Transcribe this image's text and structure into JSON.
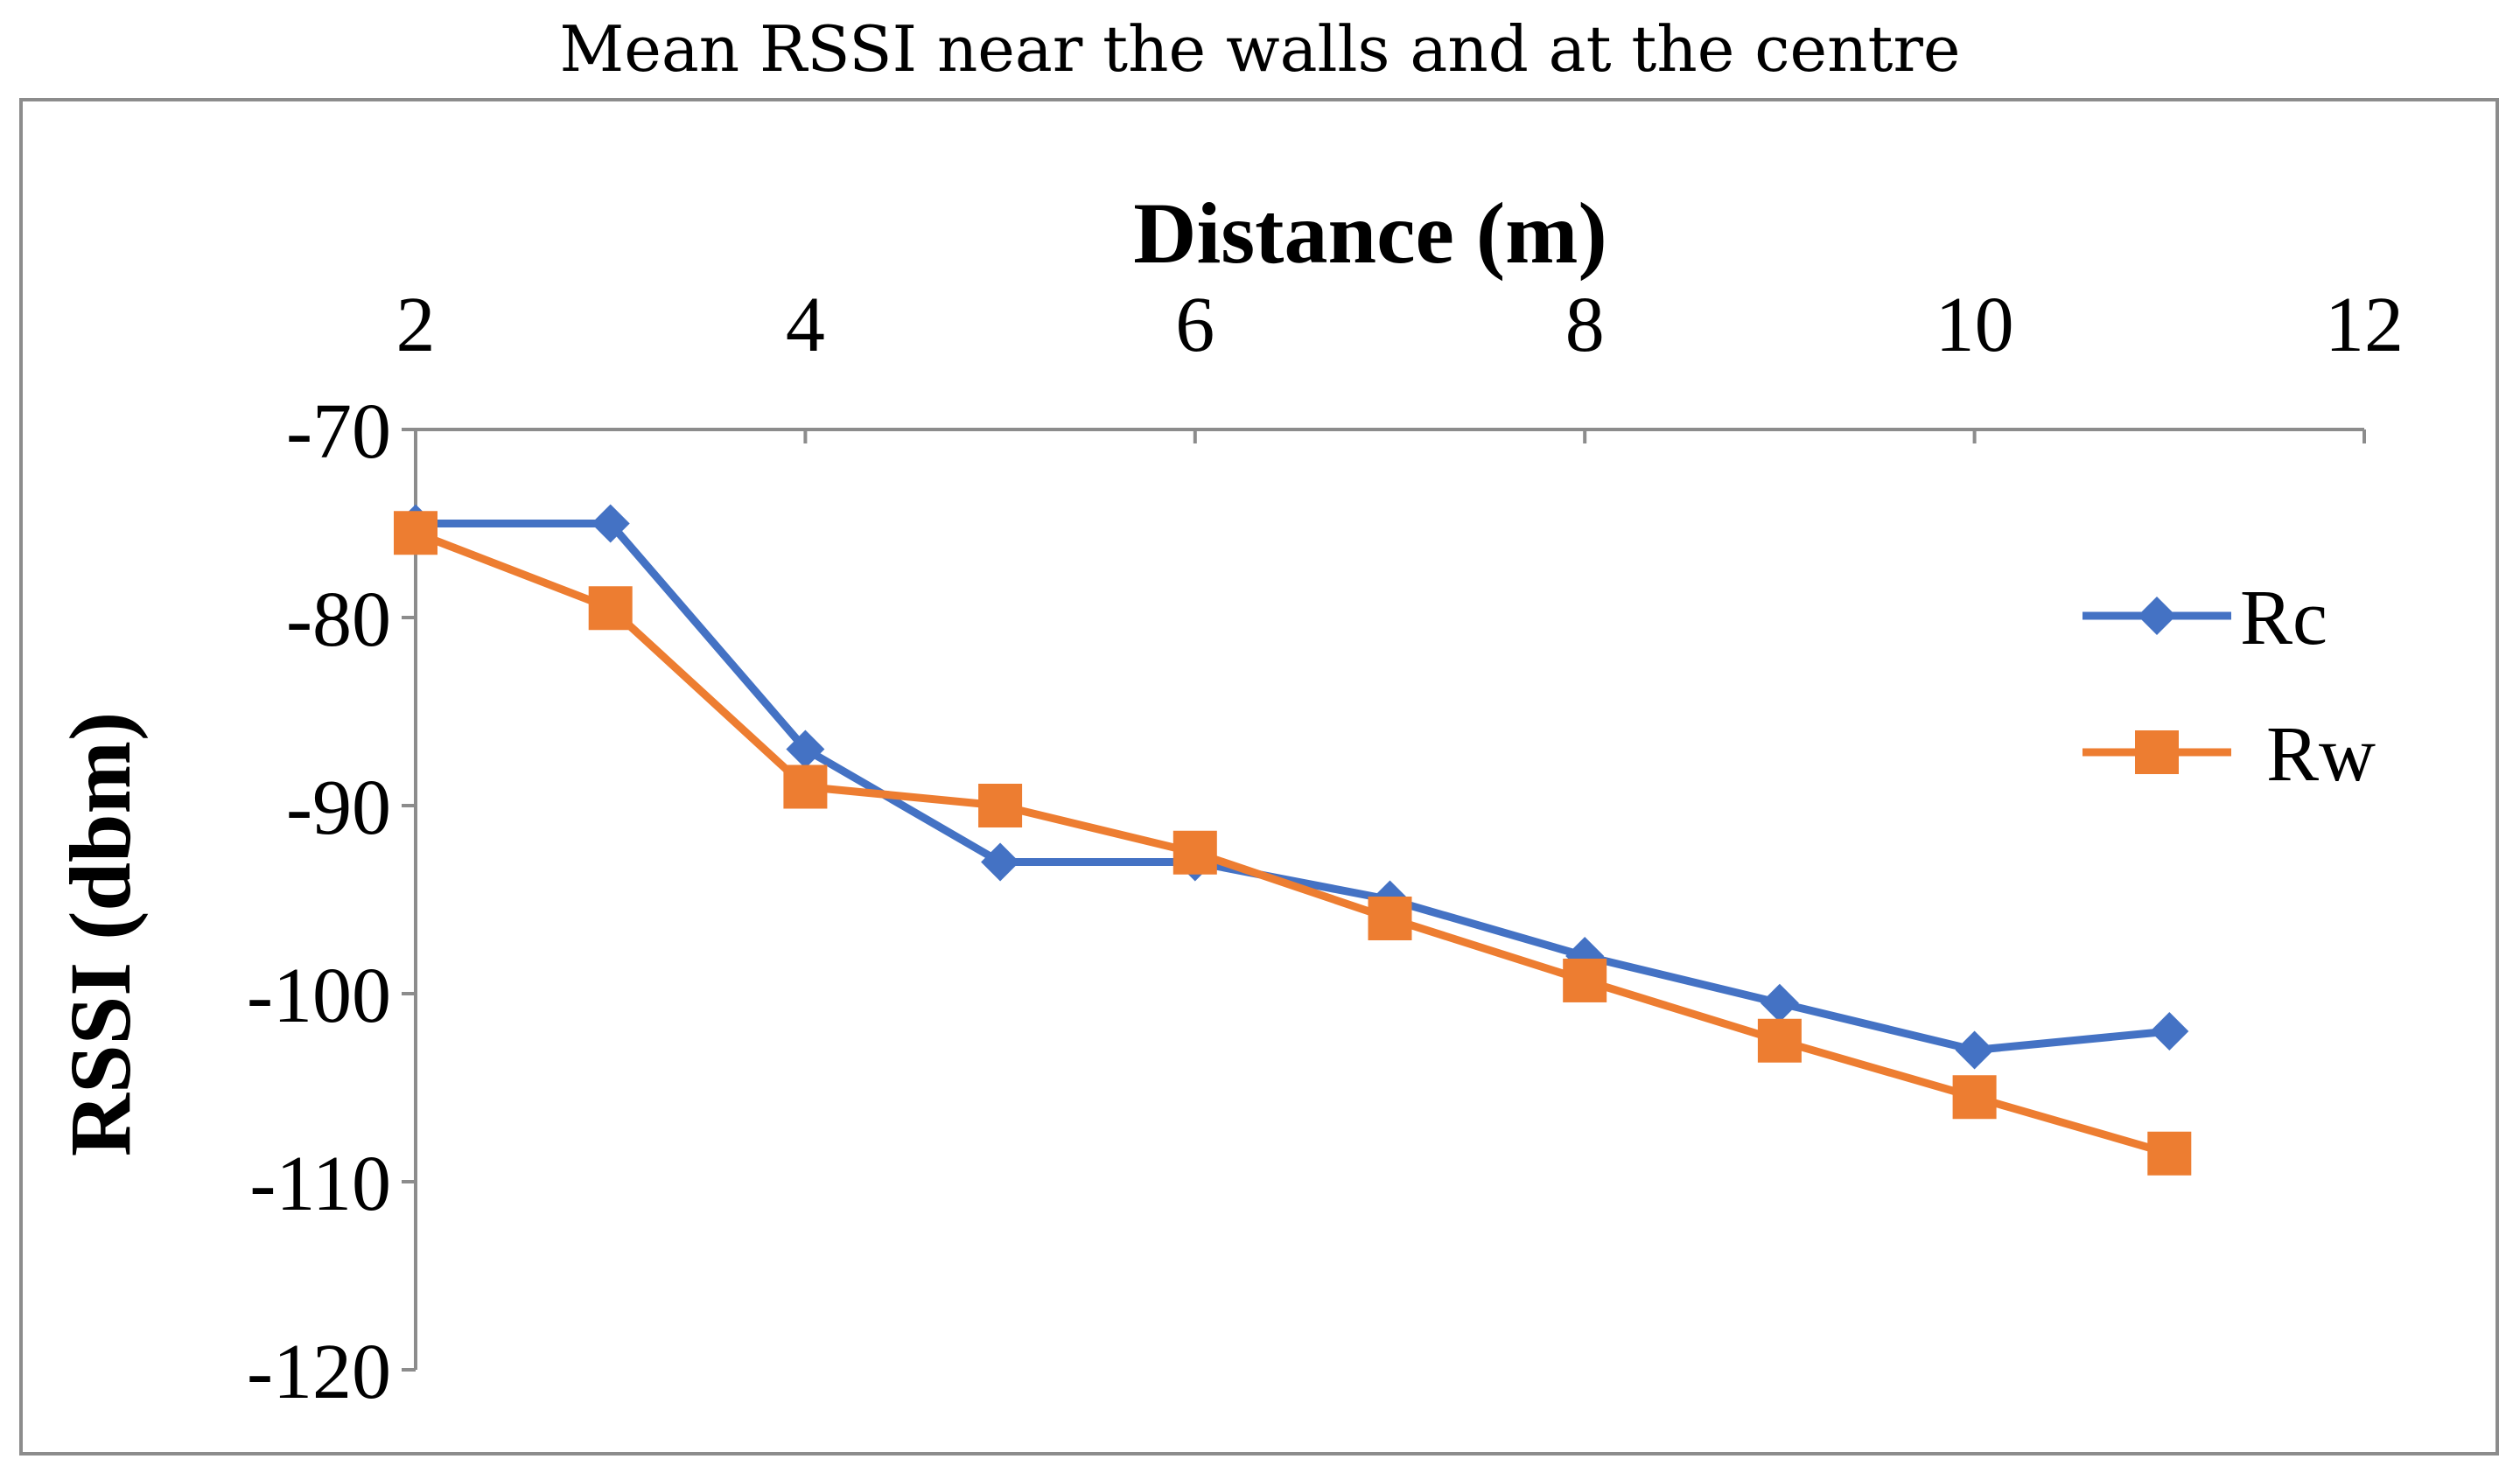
{
  "chart_data": {
    "type": "line",
    "title": "Mean RSSI near the walls and at the centre",
    "xlabel": "Distance (m)",
    "ylabel": "RSSI (dbm)",
    "xlim": [
      2,
      12
    ],
    "ylim": [
      -120,
      -70
    ],
    "x_ticks": [
      2,
      4,
      6,
      8,
      10,
      12
    ],
    "y_ticks": [
      -70,
      -80,
      -90,
      -100,
      -110,
      -120
    ],
    "x_axis_position": "top",
    "grid": false,
    "legend_position": "right",
    "x": [
      2,
      3,
      4,
      5,
      6,
      7,
      8,
      9,
      10,
      11
    ],
    "series": [
      {
        "name": "Rc",
        "color": "#4472c4",
        "marker": "diamond",
        "values": [
          -75,
          -75,
          -87,
          -93,
          -93,
          -95,
          -98,
          -100.5,
          -103,
          -102
        ]
      },
      {
        "name": "Rw",
        "color": "#ed7d31",
        "marker": "square",
        "values": [
          -75.5,
          -79.5,
          -89,
          -90,
          -92.5,
          -96,
          -99.3,
          -102.5,
          -105.5,
          -108.5
        ]
      }
    ]
  }
}
